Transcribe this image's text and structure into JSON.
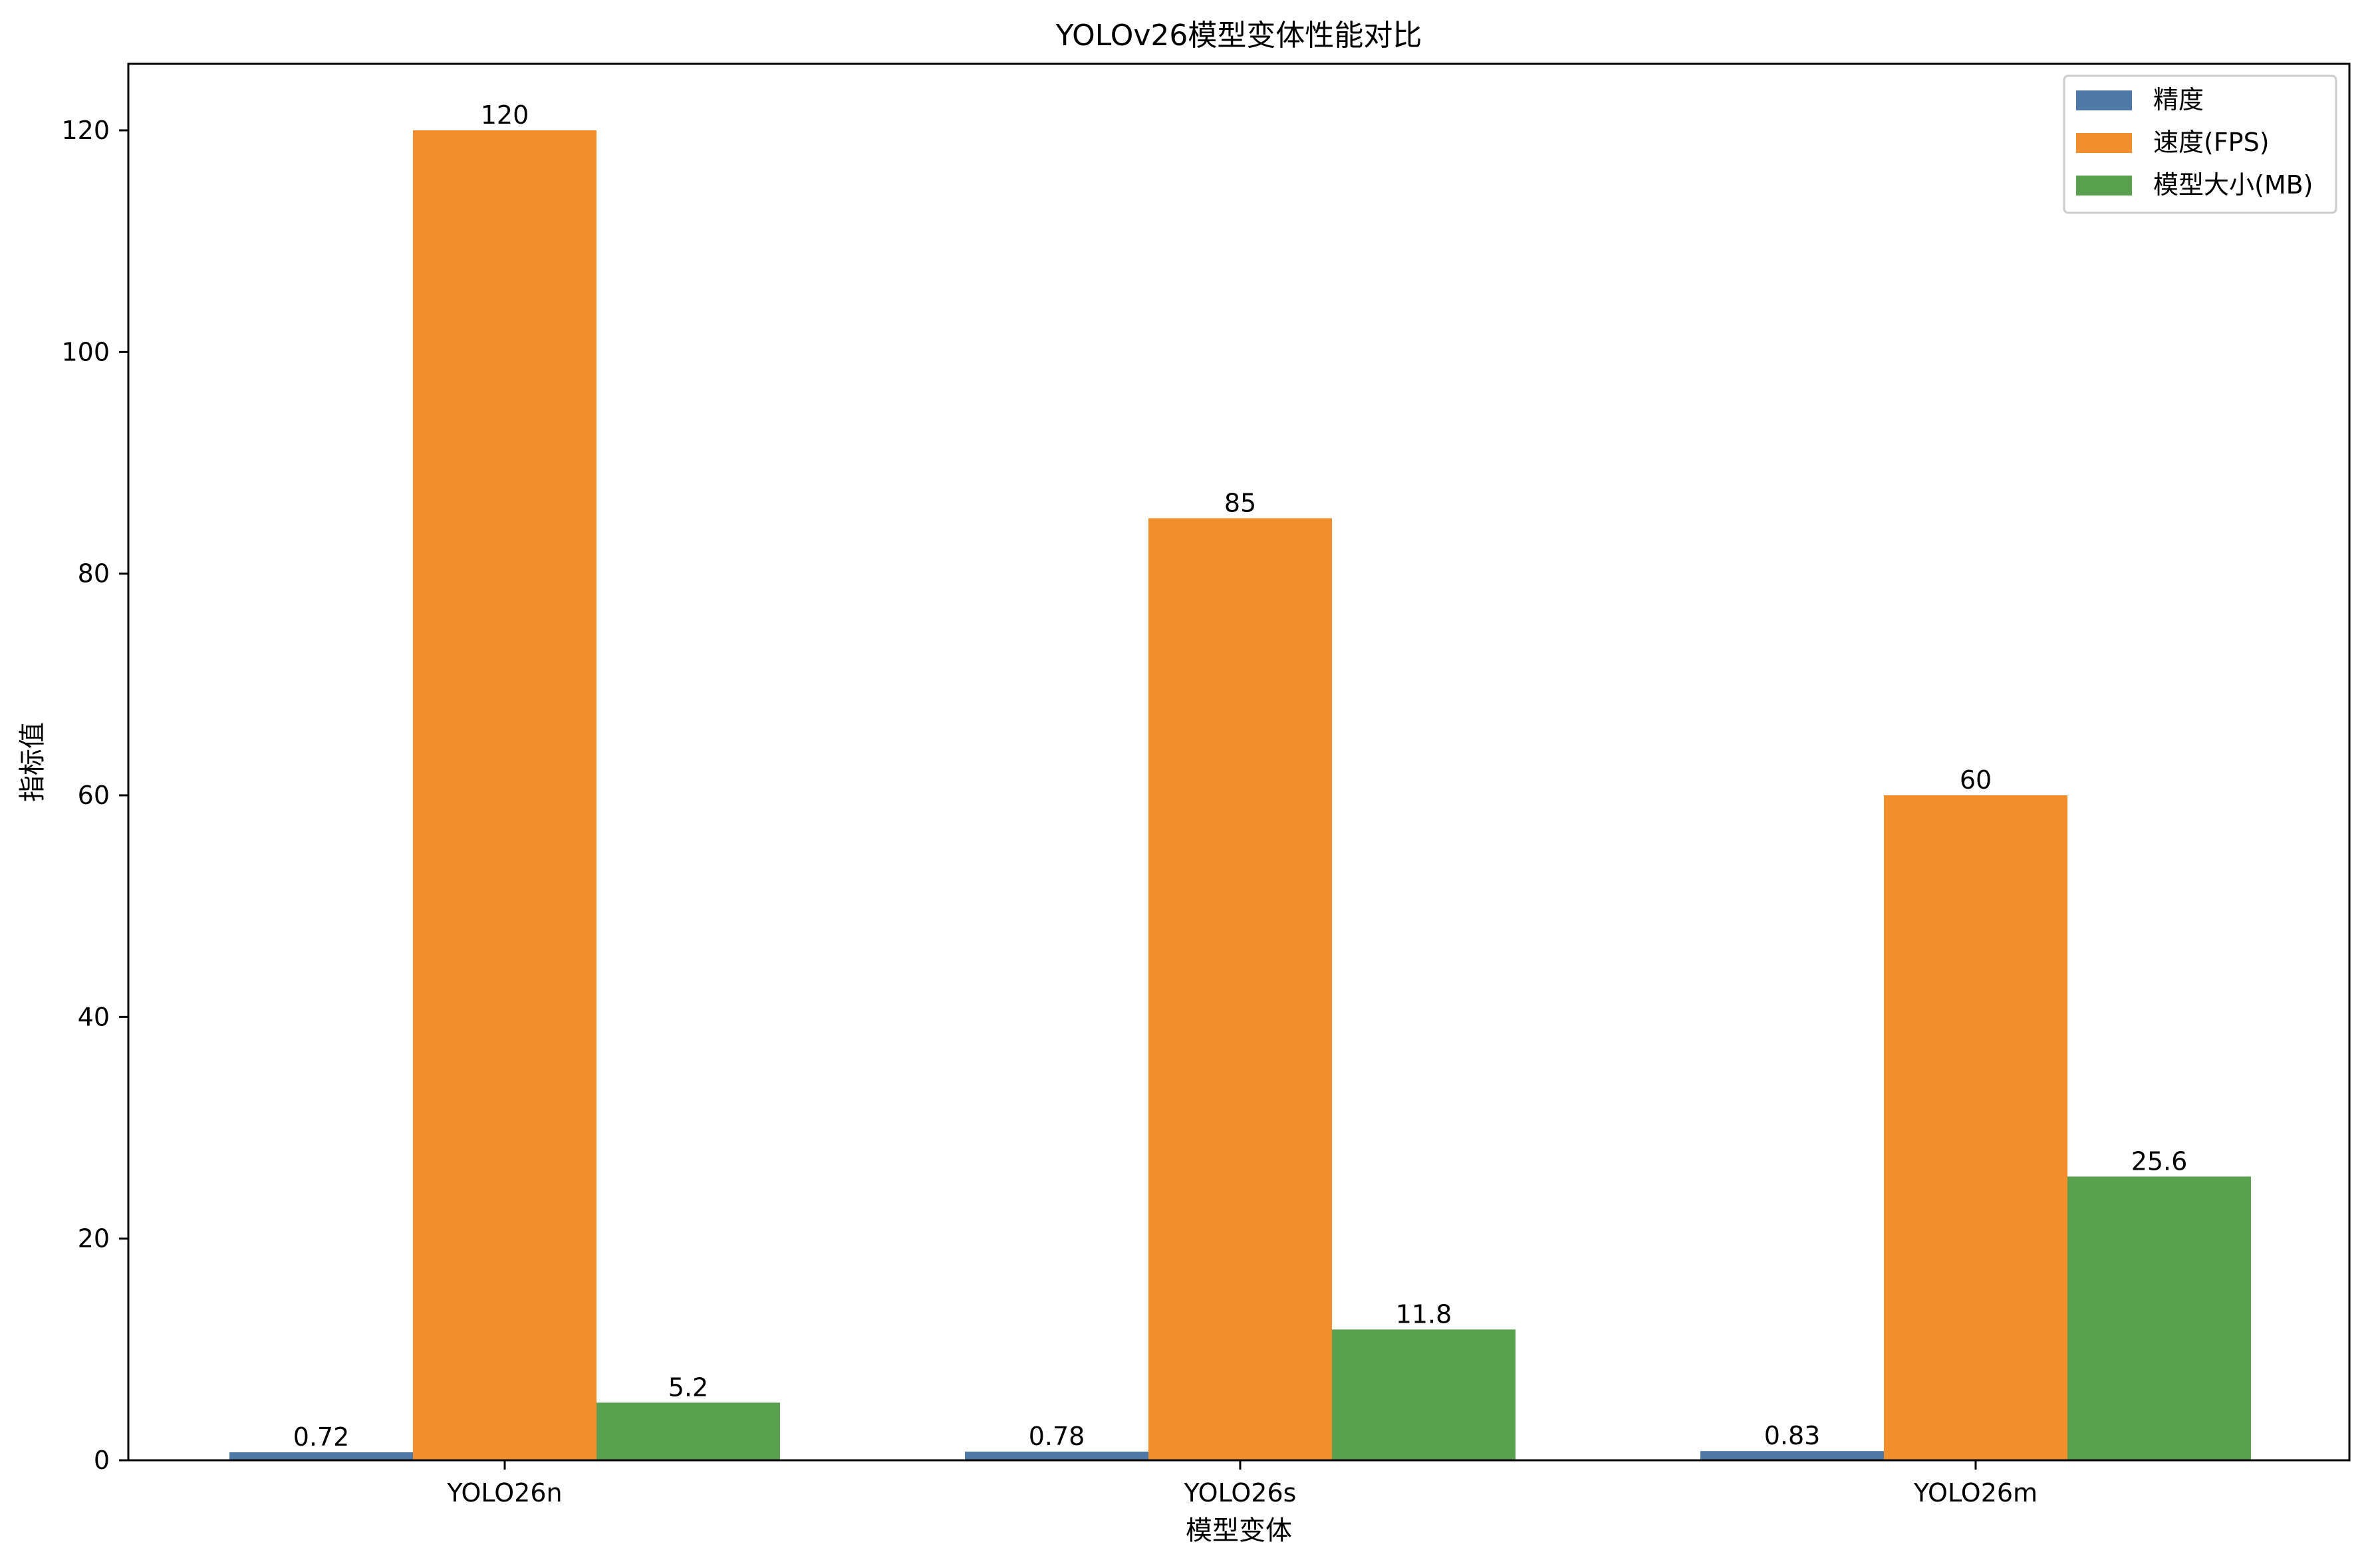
{
  "chart_data": {
    "type": "bar",
    "title": "YOLOv26模型变体性能对比",
    "xlabel": "模型变体",
    "ylabel": "指标值",
    "categories": [
      "YOLO26n",
      "YOLO26s",
      "YOLO26m"
    ],
    "series": [
      {
        "name": "精度",
        "color": "#4e79a7",
        "values": [
          0.72,
          0.78,
          0.83
        ],
        "labels": [
          "0.72",
          "0.78",
          "0.83"
        ]
      },
      {
        "name": "速度(FPS)",
        "color": "#f28e2b",
        "values": [
          120,
          85,
          60
        ],
        "labels": [
          "120",
          "85",
          "60"
        ]
      },
      {
        "name": "模型大小(MB)",
        "color": "#59a14f",
        "values": [
          5.2,
          11.8,
          25.6
        ],
        "labels": [
          "5.2",
          "11.8",
          "25.6"
        ]
      }
    ],
    "ylim": [
      0,
      126
    ],
    "yticks": [
      0,
      20,
      40,
      60,
      80,
      100,
      120
    ],
    "grid": false,
    "legend_position": "top-right"
  }
}
